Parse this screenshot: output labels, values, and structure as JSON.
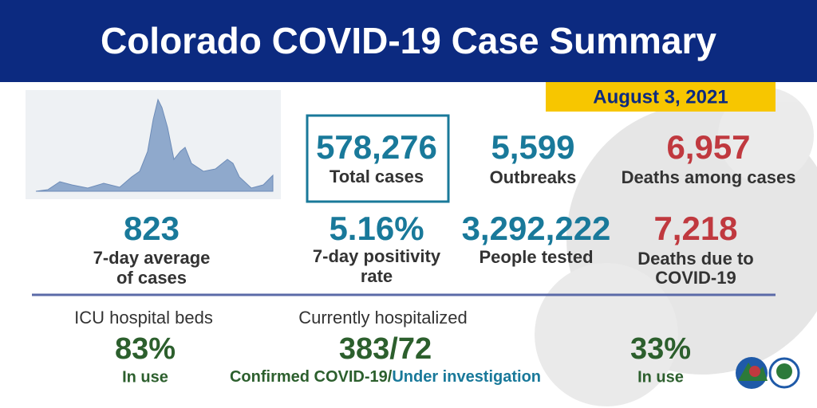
{
  "header": {
    "title": "Colorado COVID-19 Case Summary",
    "date": "August 3, 2021"
  },
  "stats": [
    {
      "value": "578,276",
      "label": [
        "Total cases"
      ]
    },
    {
      "value": "5,599",
      "label": [
        "Outbreaks"
      ]
    },
    {
      "value": "6,957",
      "label": [
        "Deaths among cases"
      ]
    },
    {
      "value": "823",
      "label": [
        "7-day average",
        "of cases"
      ]
    },
    {
      "value": "5.16%",
      "label": [
        "7-day positivity",
        "rate"
      ]
    },
    {
      "value": "3,292,222",
      "label": [
        "People tested"
      ]
    },
    {
      "value": "7,218",
      "label": [
        "Deaths due to",
        "COVID-19"
      ]
    }
  ],
  "hospital": {
    "icu": {
      "heading": "ICU hospital beds",
      "value": "83%",
      "note": "In use"
    },
    "current": {
      "heading": "Currently hospitalized",
      "value": "383/72",
      "confirmed": "Confirmed COVID-19/",
      "investigation": "Under investigation"
    },
    "other": {
      "value": "33%",
      "note": "In use"
    }
  }
}
